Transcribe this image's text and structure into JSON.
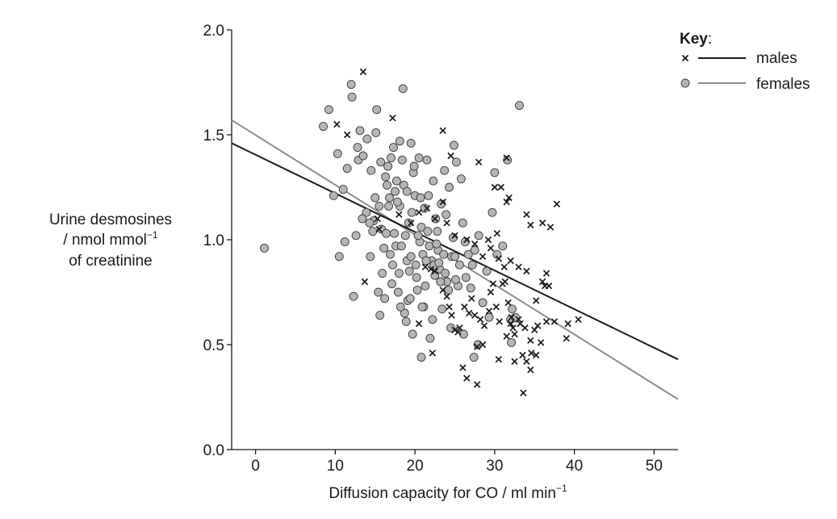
{
  "chart_data": {
    "type": "scatter",
    "title": "",
    "xlabel": "Diffusion capacity for CO / ml min",
    "xlabel_sup": "−1",
    "ylabel_lines": [
      "Urine desmosines",
      "/ nmol mmol",
      "of creatinine"
    ],
    "ylabel_sup": "−1",
    "xlim": [
      -3,
      53
    ],
    "ylim": [
      0.0,
      2.0
    ],
    "xticks": [
      0,
      10,
      20,
      30,
      40,
      50
    ],
    "xtick_labels": [
      "0",
      "10",
      "20",
      "30",
      "40",
      "50"
    ],
    "yticks": [
      0.0,
      0.5,
      1.0,
      1.5,
      2.0
    ],
    "ytick_labels": [
      "0.0",
      "0.5",
      "1.0",
      "1.5",
      "2.0"
    ],
    "grid": false,
    "legend": {
      "title": "Key",
      "title_suffix": ":",
      "placement": "top-right",
      "entries": [
        {
          "label": "males",
          "marker": "x",
          "color": "#1a1a1a"
        },
        {
          "label": "females",
          "marker": "circle",
          "color": "#8c8c8c"
        }
      ]
    },
    "series": [
      {
        "name": "males",
        "marker": "x",
        "color": "#1a1a1a",
        "fit_line": {
          "x": [
            -3,
            53
          ],
          "y": [
            1.46,
            0.43
          ]
        },
        "points": [
          [
            13.5,
            1.8
          ],
          [
            10.2,
            1.55
          ],
          [
            11.5,
            1.5
          ],
          [
            17.2,
            1.58
          ],
          [
            23.5,
            1.52
          ],
          [
            24.5,
            1.4
          ],
          [
            31.5,
            1.39
          ],
          [
            28,
            1.37
          ],
          [
            30,
            1.25
          ],
          [
            30.8,
            1.25
          ],
          [
            31.5,
            1.18
          ],
          [
            31.8,
            1.2
          ],
          [
            34,
            1.12
          ],
          [
            34.5,
            1.07
          ],
          [
            36,
            1.08
          ],
          [
            37,
            1.06
          ],
          [
            37.8,
            1.17
          ],
          [
            15.3,
            1.1
          ],
          [
            15.5,
            1.05
          ],
          [
            18,
            1.12
          ],
          [
            19.5,
            1.08
          ],
          [
            20.5,
            1.13
          ],
          [
            21.5,
            1.15
          ],
          [
            22.5,
            1.1
          ],
          [
            23.5,
            1.18
          ],
          [
            24,
            1.08
          ],
          [
            25,
            1.02
          ],
          [
            26.5,
            1.0
          ],
          [
            27.5,
            0.98
          ],
          [
            28.5,
            0.92
          ],
          [
            29.2,
            1.0
          ],
          [
            29.5,
            0.96
          ],
          [
            30.3,
            1.03
          ],
          [
            30.5,
            0.91
          ],
          [
            31.2,
            0.87
          ],
          [
            32,
            0.9
          ],
          [
            33,
            0.87
          ],
          [
            34,
            0.85
          ],
          [
            36,
            0.8
          ],
          [
            36.5,
            0.84
          ],
          [
            36.8,
            0.78
          ],
          [
            36.3,
            0.78
          ],
          [
            35.2,
            0.71
          ],
          [
            13.7,
            0.8
          ],
          [
            21.3,
            0.87
          ],
          [
            22,
            0.86
          ],
          [
            22.5,
            0.85
          ],
          [
            23.5,
            0.76
          ],
          [
            24,
            0.73
          ],
          [
            24.3,
            0.68
          ],
          [
            24.6,
            0.64
          ],
          [
            25,
            0.57
          ],
          [
            25.6,
            0.58
          ],
          [
            26.2,
            0.68
          ],
          [
            27.1,
            0.72
          ],
          [
            27.5,
            0.64
          ],
          [
            28.2,
            0.62
          ],
          [
            28.7,
            0.59
          ],
          [
            29.3,
            0.66
          ],
          [
            29.8,
            0.79
          ],
          [
            30.2,
            0.68
          ],
          [
            30.6,
            0.61
          ],
          [
            31,
            0.79
          ],
          [
            31.3,
            0.8
          ],
          [
            31.7,
            0.7
          ],
          [
            32.1,
            0.63
          ],
          [
            32.3,
            0.58
          ],
          [
            32.5,
            0.55
          ],
          [
            33.2,
            0.6
          ],
          [
            33.8,
            0.58
          ],
          [
            34.5,
            0.52
          ],
          [
            35,
            0.57
          ],
          [
            35.4,
            0.59
          ],
          [
            35.8,
            0.51
          ],
          [
            34.6,
            0.46
          ],
          [
            35.2,
            0.45
          ],
          [
            36.5,
            0.61
          ],
          [
            37.5,
            0.61
          ],
          [
            39,
            0.53
          ],
          [
            39.2,
            0.6
          ],
          [
            40.5,
            0.62
          ],
          [
            33.5,
            0.45
          ],
          [
            34,
            0.42
          ],
          [
            34.5,
            0.38
          ],
          [
            33.6,
            0.27
          ],
          [
            32.5,
            0.42
          ],
          [
            30.5,
            0.43
          ],
          [
            28.5,
            0.5
          ],
          [
            27.8,
            0.49
          ],
          [
            27.8,
            0.31
          ],
          [
            26,
            0.39
          ],
          [
            26.5,
            0.34
          ],
          [
            22.2,
            0.46
          ],
          [
            20.5,
            0.6
          ],
          [
            32,
            0.6
          ],
          [
            33,
            0.62
          ],
          [
            31.5,
            0.54
          ],
          [
            25.4,
            0.56
          ],
          [
            26.8,
            0.65
          ],
          [
            29.5,
            0.75
          ]
        ]
      },
      {
        "name": "females",
        "marker": "circle",
        "color": "#8c8c8c",
        "fit_line": {
          "x": [
            -3,
            53
          ],
          "y": [
            1.57,
            0.24
          ]
        },
        "points": [
          [
            1.1,
            0.96
          ],
          [
            9.2,
            1.62
          ],
          [
            8.5,
            1.54
          ],
          [
            9.8,
            1.21
          ],
          [
            10.3,
            1.41
          ],
          [
            10.5,
            0.92
          ],
          [
            11.2,
            0.99
          ],
          [
            11,
            1.24
          ],
          [
            11.5,
            1.34
          ],
          [
            12,
            1.74
          ],
          [
            12.1,
            1.68
          ],
          [
            12.3,
            0.73
          ],
          [
            12.8,
            1.44
          ],
          [
            12.9,
            1.38
          ],
          [
            13.1,
            1.52
          ],
          [
            13.5,
            1.4
          ],
          [
            13.9,
            1.13
          ],
          [
            14,
            1.48
          ],
          [
            14.5,
            1.33
          ],
          [
            14.8,
            1.09
          ],
          [
            15.2,
            1.62
          ],
          [
            15.1,
            1.51
          ],
          [
            15.5,
            1.16
          ],
          [
            15.8,
            1.05
          ],
          [
            15.9,
            0.84
          ],
          [
            16.1,
            0.96
          ],
          [
            16.3,
            1.3
          ],
          [
            16.5,
            1.26
          ],
          [
            16.8,
            1.2
          ],
          [
            17,
            1.39
          ],
          [
            17.2,
            0.88
          ],
          [
            17.5,
            1.23
          ],
          [
            17.6,
            0.97
          ],
          [
            18.1,
            1.16
          ],
          [
            18.5,
            1.72
          ],
          [
            18.8,
            1.02
          ],
          [
            19,
            0.9
          ],
          [
            19.2,
            1.08
          ],
          [
            19.5,
            1.46
          ],
          [
            19.8,
            1.32
          ],
          [
            20,
            1.21
          ],
          [
            20.2,
            0.82
          ],
          [
            20.5,
            1.39
          ],
          [
            20.8,
            1.06
          ],
          [
            21,
            0.93
          ],
          [
            21.2,
            1.15
          ],
          [
            21.5,
            1.38
          ],
          [
            21.8,
            0.97
          ],
          [
            22.1,
            0.9
          ],
          [
            22.3,
            1.28
          ],
          [
            22.6,
            1.1
          ],
          [
            22.9,
            0.95
          ],
          [
            23.1,
            0.86
          ],
          [
            23.3,
            1.17
          ],
          [
            23.7,
            1.33
          ],
          [
            24,
            0.8
          ],
          [
            24.3,
            1.25
          ],
          [
            24.6,
            0.92
          ],
          [
            24.9,
            1.45
          ],
          [
            25.2,
            1.37
          ],
          [
            25.6,
            0.88
          ],
          [
            26,
            1.08
          ],
          [
            26.4,
            0.82
          ],
          [
            27,
            0.77
          ],
          [
            27.5,
            0.95
          ],
          [
            28,
            1.02
          ],
          [
            28.5,
            0.7
          ],
          [
            29,
            0.85
          ],
          [
            29.7,
            1.13
          ],
          [
            30.3,
            0.93
          ],
          [
            31,
            0.97
          ],
          [
            32,
            0.62
          ],
          [
            32.2,
            0.67
          ],
          [
            14.3,
            1.08
          ],
          [
            15,
            1.2
          ],
          [
            16.6,
            1.35
          ],
          [
            17.8,
            1.18
          ],
          [
            18.3,
            0.97
          ],
          [
            19.6,
            1.13
          ],
          [
            20.7,
            1.2
          ],
          [
            21.7,
            1.21
          ],
          [
            22.8,
            1.04
          ],
          [
            23.2,
            0.8
          ],
          [
            23.9,
            1.12
          ],
          [
            24.8,
            1.01
          ],
          [
            25.4,
            0.78
          ],
          [
            26.7,
            0.93
          ],
          [
            27.2,
            0.88
          ],
          [
            16.9,
            0.93
          ],
          [
            17.4,
            1.03
          ],
          [
            18.6,
            1.26
          ],
          [
            19.3,
            0.85
          ],
          [
            20.6,
            0.99
          ],
          [
            21.3,
            0.78
          ],
          [
            22.4,
            0.88
          ],
          [
            23.6,
            0.93
          ],
          [
            17.3,
            1.44
          ],
          [
            18.1,
            1.47
          ],
          [
            19.9,
            1.35
          ],
          [
            17.9,
            0.75
          ],
          [
            18.7,
            0.65
          ],
          [
            19.1,
            0.71
          ],
          [
            20.3,
            0.76
          ],
          [
            21.1,
            0.68
          ],
          [
            14.4,
            0.92
          ],
          [
            15.4,
            0.75
          ],
          [
            16.2,
            0.72
          ],
          [
            17.1,
            0.79
          ],
          [
            18.2,
            0.68
          ],
          [
            19.4,
            0.72
          ],
          [
            20.9,
            0.68
          ],
          [
            22.2,
            0.62
          ],
          [
            15.6,
            0.64
          ],
          [
            18.9,
            0.61
          ],
          [
            19.7,
            0.55
          ],
          [
            20.8,
            0.44
          ],
          [
            21.9,
            0.53
          ],
          [
            23.4,
            0.67
          ],
          [
            24.5,
            0.58
          ],
          [
            26.1,
            0.55
          ],
          [
            27.4,
            0.44
          ],
          [
            27.9,
            0.5
          ],
          [
            32.1,
            0.51
          ],
          [
            33.1,
            1.64
          ],
          [
            30,
            1.32
          ],
          [
            29.3,
            0.63
          ],
          [
            31.6,
            1.38
          ],
          [
            32.6,
            0.63
          ],
          [
            15.7,
            1.37
          ],
          [
            16.4,
            1.03
          ],
          [
            17.7,
            1.28
          ],
          [
            18.4,
            1.38
          ],
          [
            19.5,
            0.92
          ],
          [
            20.4,
            1.02
          ],
          [
            21.6,
            1.04
          ],
          [
            22.7,
            0.98
          ],
          [
            23.8,
            0.84
          ],
          [
            25,
            0.92
          ],
          [
            25.8,
            1.29
          ],
          [
            14.7,
            1.04
          ],
          [
            13.4,
            1.1
          ],
          [
            12.6,
            1.02
          ],
          [
            16.7,
            1.16
          ],
          [
            18,
            0.84
          ],
          [
            19,
            1.23
          ],
          [
            20.1,
            0.88
          ],
          [
            21.4,
            0.9
          ],
          [
            22.5,
            0.83
          ],
          [
            23,
            0.89
          ],
          [
            24.2,
            0.76
          ],
          [
            25.1,
            0.81
          ],
          [
            26.3,
            0.99
          ]
        ]
      }
    ]
  }
}
